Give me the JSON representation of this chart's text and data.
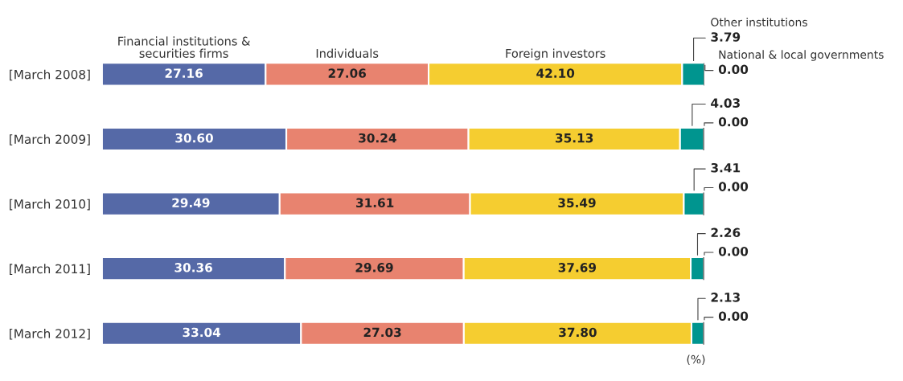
{
  "chart_data": {
    "type": "bar",
    "orientation": "horizontal",
    "stacked": true,
    "legend": false,
    "xlim": [
      0,
      100
    ],
    "categories": [
      "[March 2008]",
      "[March 2009]",
      "[March 2010]",
      "[March 2011]",
      "[March 2012]"
    ],
    "series": [
      {
        "name": "Financial institutions & securities firms",
        "color": "#5569a7",
        "values": [
          27.16,
          30.6,
          29.49,
          30.36,
          33.04
        ],
        "value_labels": [
          "27.16",
          "30.60",
          "29.49",
          "30.36",
          "33.04"
        ]
      },
      {
        "name": "Individuals",
        "color": "#e8836f",
        "values": [
          27.06,
          30.24,
          31.61,
          29.69,
          27.03
        ],
        "value_labels": [
          "27.06",
          "30.24",
          "31.61",
          "29.69",
          "27.03"
        ]
      },
      {
        "name": "Foreign investors",
        "color": "#f5cd30",
        "values": [
          42.1,
          35.13,
          35.49,
          37.69,
          37.8
        ],
        "value_labels": [
          "42.10",
          "35.13",
          "35.49",
          "37.69",
          "37.80"
        ]
      },
      {
        "name": "Other institutions",
        "color": "#00958f",
        "values": [
          3.79,
          4.03,
          3.41,
          2.26,
          2.13
        ],
        "value_labels": [
          "3.79",
          "4.03",
          "3.41",
          "2.26",
          "2.13"
        ]
      },
      {
        "name": "National & local governments",
        "color": "#808080",
        "values": [
          0.0,
          0.0,
          0.0,
          0.0,
          0.0
        ],
        "value_labels": [
          "0.00",
          "0.00",
          "0.00",
          "0.00",
          "0.00"
        ]
      }
    ],
    "annotations": [
      "(%)"
    ]
  }
}
